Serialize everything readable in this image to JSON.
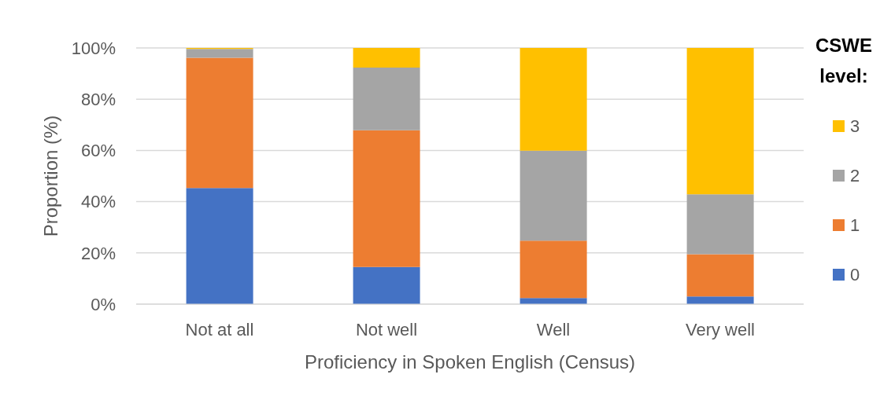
{
  "chart_data": {
    "type": "bar",
    "stacked": true,
    "categories": [
      "Not at all",
      "Not well",
      "Well",
      "Very well"
    ],
    "series": [
      {
        "name": "0",
        "color": "#4472c4",
        "values": [
          45.3,
          14.5,
          2.4,
          3.0
        ]
      },
      {
        "name": "1",
        "color": "#ed7d31",
        "values": [
          50.9,
          53.4,
          22.4,
          16.5
        ]
      },
      {
        "name": "2",
        "color": "#a5a5a5",
        "values": [
          3.4,
          24.4,
          35.1,
          23.4
        ]
      },
      {
        "name": "3",
        "color": "#ffc000",
        "values": [
          0.4,
          7.7,
          40.1,
          57.1
        ]
      }
    ],
    "xlabel": "Proficiency in Spoken English (Census)",
    "ylabel": "Proportion (%)",
    "legend_title": "CSWE level:",
    "ylim": [
      0,
      100
    ],
    "yticks": [
      {
        "value": 0,
        "label": "0%"
      },
      {
        "value": 20,
        "label": "20%"
      },
      {
        "value": 40,
        "label": "40%"
      },
      {
        "value": 60,
        "label": "60%"
      },
      {
        "value": 80,
        "label": "80%"
      },
      {
        "value": 100,
        "label": "100%"
      }
    ],
    "grid": "y",
    "legend": "right"
  }
}
